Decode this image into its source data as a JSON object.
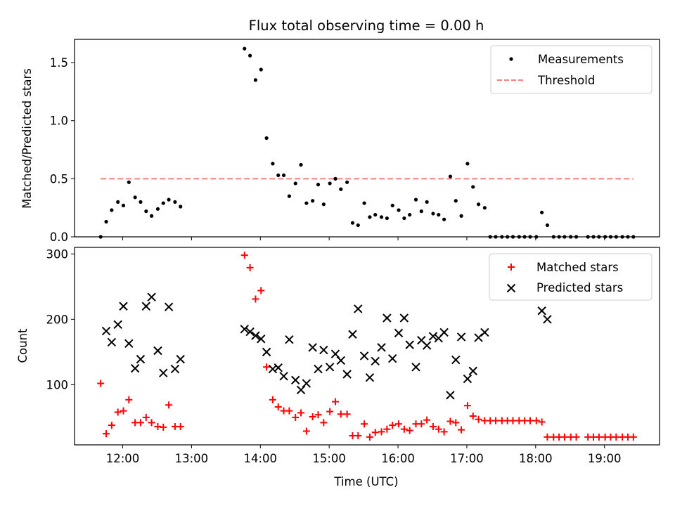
{
  "figure": {
    "title": "Flux total observing time = 0.00 h",
    "xlabel": "Time (UTC)"
  },
  "chart_data": [
    {
      "type": "scatter",
      "panel": "top",
      "title": "Flux total observing time = 0.00 h",
      "ylabel": "Matched/Predicted stars",
      "xlim": [
        11.3,
        19.8
      ],
      "ylim": [
        0,
        1.7
      ],
      "yticks": [
        {
          "value": 0.0,
          "label": "0.0"
        },
        {
          "value": 0.5,
          "label": "0.5"
        },
        {
          "value": 1.0,
          "label": "1.0"
        },
        {
          "value": 1.5,
          "label": "1.5"
        }
      ],
      "legend": {
        "position": "top-right",
        "entries": [
          "Measurements",
          "Threshold"
        ]
      },
      "series": [
        {
          "name": "Measurements",
          "marker": "dot",
          "color": "#000000",
          "points": [
            [
              11.68,
              0.0
            ],
            [
              11.76,
              0.13
            ],
            [
              11.84,
              0.23
            ],
            [
              11.93,
              0.3
            ],
            [
              12.01,
              0.27
            ],
            [
              12.09,
              0.47
            ],
            [
              12.18,
              0.34
            ],
            [
              12.26,
              0.3
            ],
            [
              12.34,
              0.22
            ],
            [
              12.42,
              0.18
            ],
            [
              12.51,
              0.24
            ],
            [
              12.59,
              0.29
            ],
            [
              12.67,
              0.32
            ],
            [
              12.76,
              0.3
            ],
            [
              12.84,
              0.26
            ],
            [
              13.77,
              1.62
            ],
            [
              13.85,
              1.56
            ],
            [
              13.93,
              1.35
            ],
            [
              14.01,
              1.44
            ],
            [
              14.09,
              0.85
            ],
            [
              14.18,
              0.63
            ],
            [
              14.26,
              0.53
            ],
            [
              14.34,
              0.53
            ],
            [
              14.42,
              0.35
            ],
            [
              14.51,
              0.46
            ],
            [
              14.59,
              0.62
            ],
            [
              14.67,
              0.29
            ],
            [
              14.76,
              0.31
            ],
            [
              14.84,
              0.45
            ],
            [
              14.92,
              0.28
            ],
            [
              15.01,
              0.46
            ],
            [
              15.09,
              0.5
            ],
            [
              15.17,
              0.41
            ],
            [
              15.26,
              0.47
            ],
            [
              15.34,
              0.12
            ],
            [
              15.42,
              0.1
            ],
            [
              15.51,
              0.29
            ],
            [
              15.59,
              0.17
            ],
            [
              15.67,
              0.19
            ],
            [
              15.76,
              0.17
            ],
            [
              15.84,
              0.16
            ],
            [
              15.92,
              0.27
            ],
            [
              16.01,
              0.23
            ],
            [
              16.09,
              0.16
            ],
            [
              16.17,
              0.19
            ],
            [
              16.26,
              0.32
            ],
            [
              16.34,
              0.22
            ],
            [
              16.42,
              0.3
            ],
            [
              16.51,
              0.2
            ],
            [
              16.59,
              0.19
            ],
            [
              16.67,
              0.15
            ],
            [
              16.76,
              0.52
            ],
            [
              16.84,
              0.31
            ],
            [
              16.92,
              0.18
            ],
            [
              17.01,
              0.63
            ],
            [
              17.09,
              0.43
            ],
            [
              17.17,
              0.28
            ],
            [
              17.26,
              0.25
            ],
            [
              17.34,
              0.0
            ],
            [
              17.42,
              0.0
            ],
            [
              17.51,
              0.0
            ],
            [
              17.59,
              0.0
            ],
            [
              17.67,
              0.0
            ],
            [
              17.76,
              0.0
            ],
            [
              17.84,
              0.0
            ],
            [
              17.92,
              0.0
            ],
            [
              18.01,
              0.0
            ],
            [
              18.09,
              0.21
            ],
            [
              18.17,
              0.1
            ],
            [
              18.26,
              0.0
            ],
            [
              18.34,
              0.0
            ],
            [
              18.42,
              0.0
            ],
            [
              18.51,
              0.0
            ],
            [
              18.59,
              0.0
            ],
            [
              18.76,
              0.0
            ],
            [
              18.84,
              0.0
            ],
            [
              18.92,
              0.0
            ],
            [
              19.01,
              0.0
            ],
            [
              19.09,
              0.0
            ],
            [
              19.17,
              0.0
            ],
            [
              19.26,
              0.0
            ],
            [
              19.34,
              0.0
            ],
            [
              19.42,
              0.0
            ]
          ]
        },
        {
          "name": "Threshold",
          "marker": "dashed-line",
          "color": "#ff7f7f",
          "x": [
            11.68,
            19.42
          ],
          "y": [
            0.5,
            0.5
          ]
        }
      ]
    },
    {
      "type": "scatter",
      "panel": "bottom",
      "xlabel": "Time (UTC)",
      "ylabel": "Count",
      "xlim": [
        11.3,
        19.8
      ],
      "ylim": [
        8,
        310
      ],
      "yticks": [
        {
          "value": 100,
          "label": "100"
        },
        {
          "value": 200,
          "label": "200"
        },
        {
          "value": 300,
          "label": "300"
        }
      ],
      "xticks": [
        {
          "value": 12,
          "label": "12:00"
        },
        {
          "value": 13,
          "label": "13:00"
        },
        {
          "value": 14,
          "label": "14:00"
        },
        {
          "value": 15,
          "label": "15:00"
        },
        {
          "value": 16,
          "label": "16:00"
        },
        {
          "value": 17,
          "label": "17:00"
        },
        {
          "value": 18,
          "label": "18:00"
        },
        {
          "value": 19,
          "label": "19:00"
        }
      ],
      "legend": {
        "position": "top-right",
        "entries": [
          "Matched stars",
          "Predicted stars"
        ]
      },
      "series": [
        {
          "name": "Matched stars",
          "marker": "plus",
          "color": "#ff0000",
          "points": [
            [
              11.68,
              102
            ],
            [
              11.76,
              25
            ],
            [
              11.84,
              38
            ],
            [
              11.93,
              58
            ],
            [
              12.01,
              60
            ],
            [
              12.09,
              77
            ],
            [
              12.18,
              42
            ],
            [
              12.26,
              42
            ],
            [
              12.34,
              50
            ],
            [
              12.42,
              42
            ],
            [
              12.51,
              36
            ],
            [
              12.59,
              35
            ],
            [
              12.67,
              69
            ],
            [
              12.76,
              36
            ],
            [
              12.84,
              36
            ],
            [
              13.77,
              298
            ],
            [
              13.85,
              279
            ],
            [
              13.93,
              231
            ],
            [
              14.01,
              244
            ],
            [
              14.09,
              127
            ],
            [
              14.18,
              77
            ],
            [
              14.26,
              66
            ],
            [
              14.34,
              60
            ],
            [
              14.42,
              60
            ],
            [
              14.51,
              50
            ],
            [
              14.59,
              57
            ],
            [
              14.67,
              29
            ],
            [
              14.76,
              51
            ],
            [
              14.84,
              54
            ],
            [
              14.92,
              42
            ],
            [
              15.01,
              59
            ],
            [
              15.09,
              74
            ],
            [
              15.17,
              55
            ],
            [
              15.26,
              55
            ],
            [
              15.34,
              22
            ],
            [
              15.42,
              22
            ],
            [
              15.51,
              40
            ],
            [
              15.59,
              20
            ],
            [
              15.67,
              27
            ],
            [
              15.76,
              28
            ],
            [
              15.84,
              32
            ],
            [
              15.92,
              38
            ],
            [
              16.01,
              40
            ],
            [
              16.09,
              32
            ],
            [
              16.17,
              30
            ],
            [
              16.26,
              40
            ],
            [
              16.34,
              40
            ],
            [
              16.42,
              46
            ],
            [
              16.51,
              36
            ],
            [
              16.59,
              32
            ],
            [
              16.67,
              28
            ],
            [
              16.76,
              44
            ],
            [
              16.84,
              42
            ],
            [
              16.92,
              31
            ],
            [
              17.01,
              68
            ],
            [
              17.09,
              52
            ],
            [
              17.17,
              47
            ],
            [
              17.26,
              45
            ],
            [
              17.34,
              45
            ],
            [
              17.42,
              45
            ],
            [
              17.51,
              45
            ],
            [
              17.59,
              45
            ],
            [
              17.67,
              45
            ],
            [
              17.76,
              45
            ],
            [
              17.84,
              45
            ],
            [
              17.92,
              45
            ],
            [
              18.01,
              45
            ],
            [
              18.09,
              43
            ],
            [
              18.17,
              20
            ],
            [
              18.26,
              20
            ],
            [
              18.34,
              20
            ],
            [
              18.42,
              20
            ],
            [
              18.51,
              20
            ],
            [
              18.59,
              20
            ],
            [
              18.76,
              20
            ],
            [
              18.84,
              20
            ],
            [
              18.92,
              20
            ],
            [
              19.01,
              20
            ],
            [
              19.09,
              20
            ],
            [
              19.17,
              20
            ],
            [
              19.26,
              20
            ],
            [
              19.34,
              20
            ],
            [
              19.42,
              20
            ]
          ]
        },
        {
          "name": "Predicted stars",
          "marker": "x",
          "color": "#000000",
          "points": [
            [
              11.76,
              182
            ],
            [
              11.84,
              165
            ],
            [
              11.93,
              192
            ],
            [
              12.01,
              220
            ],
            [
              12.09,
              163
            ],
            [
              12.18,
              125
            ],
            [
              12.26,
              139
            ],
            [
              12.34,
              220
            ],
            [
              12.42,
              234
            ],
            [
              12.51,
              152
            ],
            [
              12.59,
              118
            ],
            [
              12.67,
              219
            ],
            [
              12.76,
              124
            ],
            [
              12.84,
              139
            ],
            [
              13.77,
              185
            ],
            [
              13.85,
              181
            ],
            [
              13.93,
              175
            ],
            [
              14.01,
              170
            ],
            [
              14.09,
              150
            ],
            [
              14.18,
              124
            ],
            [
              14.26,
              126
            ],
            [
              14.34,
              113
            ],
            [
              14.42,
              169
            ],
            [
              14.51,
              107
            ],
            [
              14.59,
              92
            ],
            [
              14.67,
              102
            ],
            [
              14.76,
              157
            ],
            [
              14.84,
              124
            ],
            [
              14.92,
              153
            ],
            [
              15.01,
              127
            ],
            [
              15.09,
              147
            ],
            [
              15.17,
              137
            ],
            [
              15.26,
              116
            ],
            [
              15.34,
              177
            ],
            [
              15.42,
              216
            ],
            [
              15.51,
              144
            ],
            [
              15.59,
              111
            ],
            [
              15.67,
              136
            ],
            [
              15.76,
              157
            ],
            [
              15.84,
              202
            ],
            [
              15.92,
              140
            ],
            [
              16.01,
              179
            ],
            [
              16.09,
              202
            ],
            [
              16.17,
              161
            ],
            [
              16.26,
              127
            ],
            [
              16.34,
              168
            ],
            [
              16.42,
              160
            ],
            [
              16.51,
              174
            ],
            [
              16.59,
              171
            ],
            [
              16.67,
              180
            ],
            [
              16.76,
              84
            ],
            [
              16.84,
              138
            ],
            [
              16.92,
              173
            ],
            [
              17.01,
              109
            ],
            [
              17.09,
              121
            ],
            [
              17.17,
              172
            ],
            [
              17.26,
              180
            ],
            [
              18.09,
              213
            ],
            [
              18.17,
              200
            ]
          ]
        }
      ]
    }
  ]
}
